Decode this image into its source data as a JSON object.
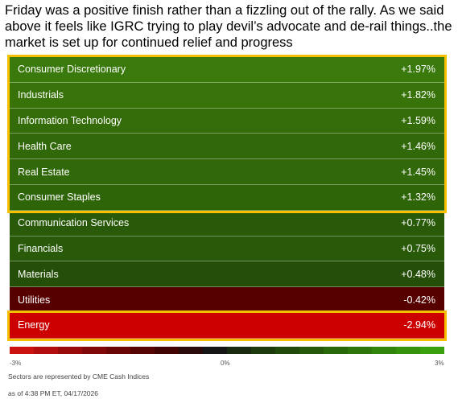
{
  "intro": "Friday was a positive finish rather than a fizzling out of the rally. As we said above it feels like IGRC trying to play devil’s advocate and de-rail things..the market is set up for continued relief and progress",
  "table": {
    "highlight_color": "#f5c000",
    "rows": [
      {
        "name": "Consumer Discretionary",
        "change": "+1.97%",
        "color": "#3a7a0c",
        "highlighted": true
      },
      {
        "name": "Industrials",
        "change": "+1.82%",
        "color": "#377309",
        "highlighted": true
      },
      {
        "name": "Information Technology",
        "change": "+1.59%",
        "color": "#336c09",
        "highlighted": true
      },
      {
        "name": "Health Care",
        "change": "+1.46%",
        "color": "#316809",
        "highlighted": true
      },
      {
        "name": "Real Estate",
        "change": "+1.45%",
        "color": "#316809",
        "highlighted": true
      },
      {
        "name": "Consumer Staples",
        "change": "+1.32%",
        "color": "#2f6509",
        "highlighted": true
      },
      {
        "name": "Communication Services",
        "change": "+0.77%",
        "color": "#295a09",
        "highlighted": false
      },
      {
        "name": "Financials",
        "change": "+0.75%",
        "color": "#295a09",
        "highlighted": false
      },
      {
        "name": "Materials",
        "change": "+0.48%",
        "color": "#254f08",
        "highlighted": false
      },
      {
        "name": "Utilities",
        "change": "-0.42%",
        "color": "#560000",
        "highlighted": false
      },
      {
        "name": "Energy",
        "change": "-2.94%",
        "color": "#cc0000",
        "highlighted": true
      }
    ]
  },
  "scale": {
    "colors": [
      "#cc1111",
      "#b30d0d",
      "#990a0a",
      "#800808",
      "#6b0606",
      "#560404",
      "#420303",
      "#2a0a0a",
      "#161616",
      "#1a2a10",
      "#1d3a0c",
      "#21490b",
      "#25580b",
      "#29670b",
      "#2d760b",
      "#31840c",
      "#35920c",
      "#3aa00d"
    ],
    "min_label": "-3%",
    "mid_label": "0%",
    "max_label": "3%"
  },
  "footer": {
    "source": "Sectors are represented by CME Cash Indices",
    "timestamp": "as of 4:38 PM ET, 04/17/2026"
  }
}
